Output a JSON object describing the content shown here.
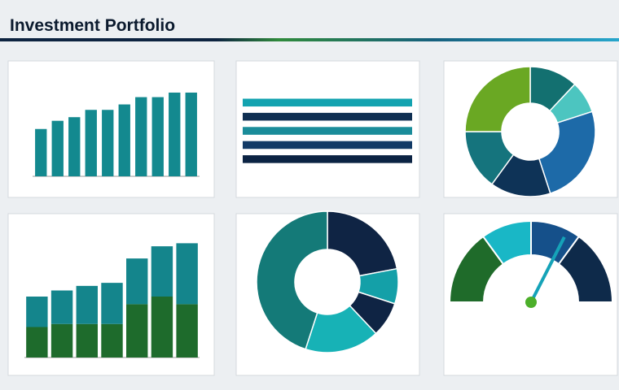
{
  "title": "Investment Portfolio",
  "panels": [
    {
      "type": "bar",
      "color": "#13898f",
      "values": [
        52,
        61,
        65,
        73,
        73,
        79,
        87,
        87,
        92,
        92
      ],
      "ylim": [
        0,
        100
      ]
    },
    {
      "type": "hbar",
      "colors": [
        "#13a3b0",
        "#0f2f52",
        "#1a8c9a",
        "#123a66",
        "#0b2343"
      ],
      "values": [
        100,
        100,
        100,
        100,
        100
      ],
      "xlim": [
        0,
        100
      ]
    },
    {
      "type": "donut",
      "colors": [
        "#137070",
        "#4cc5c0",
        "#1d6aa8",
        "#0e3357",
        "#15747d",
        "#6aa823"
      ],
      "values": [
        12,
        8,
        25,
        15,
        15,
        25
      ]
    },
    {
      "type": "stacked",
      "series": [
        {
          "color": "#1e6b2c",
          "values": [
            20,
            22,
            22,
            22,
            35,
            40,
            35
          ]
        },
        {
          "color": "#14858c",
          "values": [
            20,
            22,
            25,
            27,
            30,
            33,
            40
          ]
        }
      ],
      "ylim": [
        0,
        80
      ]
    },
    {
      "type": "pie",
      "colors": [
        "#0f2444",
        "#14a0a8",
        "#0f2444",
        "#17b2b6",
        "#147a78"
      ],
      "values": [
        22,
        8,
        8,
        17,
        45
      ]
    },
    {
      "type": "gauge",
      "colors": [
        "#1f6b2a",
        "#19b7c6",
        "#15508a",
        "#0e2a4a"
      ],
      "values": [
        30,
        20,
        20,
        30
      ],
      "needle": 65,
      "range": [
        0,
        100
      ]
    }
  ]
}
